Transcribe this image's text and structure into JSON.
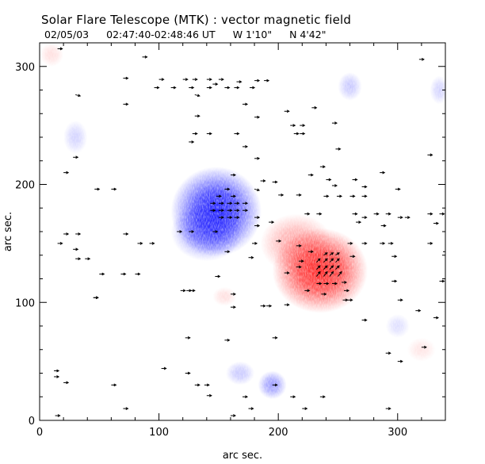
{
  "chart_data": {
    "type": "magnetogram",
    "title": "Solar Flare Telescope (MTK) : vector magnetic field",
    "date": "02/05/03",
    "time_range": "02:47:40-02:48:46 UT",
    "pos_w": "W 1'10\"",
    "pos_n": "N 4'42\"",
    "xlabel": "arc sec.",
    "ylabel": "arc sec.",
    "xlim": [
      0,
      340
    ],
    "ylim": [
      0,
      320
    ],
    "xticks": [
      0,
      100,
      200,
      300
    ],
    "yticks": [
      0,
      100,
      200,
      300
    ],
    "colors": {
      "positive": "#ff2020",
      "negative": "#1a1aff",
      "background": "#ffffff",
      "vector": "#000000"
    },
    "blobs": [
      {
        "polarity": "negative",
        "x": 148,
        "y": 177,
        "rx": 38,
        "ry": 38,
        "strength": 1.0
      },
      {
        "polarity": "negative",
        "x": 140,
        "y": 160,
        "rx": 30,
        "ry": 25,
        "strength": 0.5
      },
      {
        "polarity": "positive",
        "x": 235,
        "y": 127,
        "rx": 40,
        "ry": 36,
        "strength": 1.0
      },
      {
        "polarity": "positive",
        "x": 215,
        "y": 150,
        "rx": 30,
        "ry": 25,
        "strength": 0.4
      },
      {
        "polarity": "negative",
        "x": 195,
        "y": 30,
        "rx": 12,
        "ry": 12,
        "strength": 0.45
      },
      {
        "polarity": "negative",
        "x": 168,
        "y": 40,
        "rx": 12,
        "ry": 10,
        "strength": 0.25
      },
      {
        "polarity": "negative",
        "x": 260,
        "y": 283,
        "rx": 10,
        "ry": 12,
        "strength": 0.25
      },
      {
        "polarity": "negative",
        "x": 30,
        "y": 240,
        "rx": 10,
        "ry": 14,
        "strength": 0.2
      },
      {
        "polarity": "negative",
        "x": 335,
        "y": 280,
        "rx": 8,
        "ry": 12,
        "strength": 0.2
      },
      {
        "polarity": "negative",
        "x": 300,
        "y": 80,
        "rx": 10,
        "ry": 10,
        "strength": 0.15
      },
      {
        "polarity": "positive",
        "x": 155,
        "y": 105,
        "rx": 10,
        "ry": 8,
        "strength": 0.15
      },
      {
        "polarity": "positive",
        "x": 320,
        "y": 60,
        "rx": 12,
        "ry": 10,
        "strength": 0.12
      },
      {
        "polarity": "positive",
        "x": 10,
        "y": 310,
        "rx": 10,
        "ry": 10,
        "strength": 0.15
      }
    ],
    "vectors": [
      [
        100,
        289,
        4,
        0
      ],
      [
        120,
        289,
        4,
        0
      ],
      [
        128,
        289,
        4,
        0
      ],
      [
        140,
        289,
        4,
        0
      ],
      [
        150,
        289,
        4,
        0
      ],
      [
        165,
        287,
        4,
        0
      ],
      [
        180,
        288,
        4,
        0
      ],
      [
        188,
        288,
        4,
        0
      ],
      [
        96,
        282,
        4,
        0
      ],
      [
        110,
        282,
        4,
        0
      ],
      [
        125,
        282,
        4,
        0
      ],
      [
        140,
        282,
        4,
        0
      ],
      [
        155,
        282,
        4,
        0
      ],
      [
        163,
        282,
        4,
        0
      ],
      [
        176,
        282,
        4,
        0
      ],
      [
        145,
        285,
        4,
        0
      ],
      [
        130,
        276,
        4,
        -1
      ],
      [
        30,
        276,
        4,
        -1
      ],
      [
        170,
        268,
        4,
        0
      ],
      [
        70,
        268,
        4,
        0
      ],
      [
        205,
        262,
        4,
        0
      ],
      [
        130,
        258,
        4,
        0
      ],
      [
        180,
        257,
        4,
        0
      ],
      [
        210,
        250,
        4,
        0
      ],
      [
        218,
        250,
        4,
        0
      ],
      [
        213,
        243,
        4,
        0
      ],
      [
        218,
        243,
        4,
        0
      ],
      [
        140,
        243,
        4,
        0
      ],
      [
        128,
        243,
        4,
        0
      ],
      [
        163,
        243,
        4,
        0
      ],
      [
        125,
        236,
        4,
        0
      ],
      [
        170,
        232,
        4,
        0
      ],
      [
        248,
        230,
        4,
        0
      ],
      [
        235,
        215,
        4,
        0
      ],
      [
        28,
        223,
        4,
        0
      ],
      [
        180,
        222,
        4,
        0
      ],
      [
        225,
        208,
        4,
        0
      ],
      [
        20,
        210,
        4,
        0
      ],
      [
        185,
        203,
        4,
        0
      ],
      [
        160,
        208,
        4,
        0
      ],
      [
        240,
        204,
        4,
        0
      ],
      [
        262,
        204,
        4,
        0
      ],
      [
        285,
        210,
        4,
        0
      ],
      [
        298,
        196,
        4,
        0
      ],
      [
        46,
        196,
        4,
        0
      ],
      [
        60,
        196,
        4,
        0
      ],
      [
        245,
        199,
        4,
        0
      ],
      [
        270,
        198,
        4,
        0
      ],
      [
        195,
        202,
        4,
        0
      ],
      [
        180,
        196,
        4,
        -1
      ],
      [
        155,
        196,
        4,
        0
      ],
      [
        215,
        191,
        4,
        0
      ],
      [
        238,
        190,
        4,
        0
      ],
      [
        249,
        190,
        4,
        0
      ],
      [
        200,
        191,
        4,
        0
      ],
      [
        260,
        190,
        4,
        0
      ],
      [
        270,
        190,
        4,
        0
      ],
      [
        160,
        190,
        4,
        0
      ],
      [
        148,
        190,
        4,
        0
      ],
      [
        143,
        184,
        4,
        0
      ],
      [
        150,
        184,
        4,
        0
      ],
      [
        157,
        184,
        4,
        0
      ],
      [
        163,
        184,
        4,
        0
      ],
      [
        170,
        184,
        4,
        0
      ],
      [
        143,
        178,
        4,
        0
      ],
      [
        150,
        178,
        4,
        0
      ],
      [
        157,
        178,
        4,
        0
      ],
      [
        163,
        178,
        4,
        0
      ],
      [
        170,
        178,
        4,
        0
      ],
      [
        150,
        172,
        4,
        0
      ],
      [
        157,
        172,
        4,
        0
      ],
      [
        163,
        172,
        4,
        0
      ],
      [
        180,
        172,
        4,
        0
      ],
      [
        180,
        165,
        4,
        0
      ],
      [
        222,
        175,
        4,
        0
      ],
      [
        232,
        175,
        4,
        0
      ],
      [
        262,
        175,
        4,
        0
      ],
      [
        270,
        172,
        4,
        0
      ],
      [
        280,
        175,
        4,
        0
      ],
      [
        290,
        175,
        4,
        0
      ],
      [
        300,
        172,
        4,
        0
      ],
      [
        306,
        172,
        4,
        0
      ],
      [
        325,
        175,
        4,
        0
      ],
      [
        335,
        175,
        4,
        0
      ],
      [
        265,
        168,
        4,
        0
      ],
      [
        286,
        165,
        4,
        0
      ],
      [
        330,
        167,
        4,
        0
      ],
      [
        20,
        158,
        4,
        0
      ],
      [
        30,
        158,
        4,
        0
      ],
      [
        70,
        158,
        4,
        0
      ],
      [
        115,
        160,
        4,
        0
      ],
      [
        125,
        160,
        4,
        0
      ],
      [
        145,
        160,
        4,
        0
      ],
      [
        192,
        168,
        4,
        0
      ],
      [
        82,
        150,
        4,
        0
      ],
      [
        92,
        150,
        4,
        0
      ],
      [
        198,
        152,
        4,
        0
      ],
      [
        178,
        150,
        4,
        0
      ],
      [
        258,
        150,
        4,
        0
      ],
      [
        270,
        150,
        4,
        0
      ],
      [
        285,
        150,
        4,
        0
      ],
      [
        292,
        150,
        4,
        0
      ],
      [
        325,
        150,
        4,
        0
      ],
      [
        15,
        150,
        4,
        0
      ],
      [
        155,
        143,
        4,
        0
      ],
      [
        28,
        145,
        4,
        0
      ],
      [
        30,
        137,
        4,
        0
      ],
      [
        38,
        137,
        4,
        0
      ],
      [
        175,
        138,
        4,
        0
      ],
      [
        225,
        143,
        4,
        0
      ],
      [
        217,
        135,
        4,
        0
      ],
      [
        260,
        139,
        4,
        0
      ],
      [
        295,
        139,
        4,
        0
      ],
      [
        215,
        130,
        4,
        0
      ],
      [
        50,
        124,
        4,
        0
      ],
      [
        68,
        124,
        4,
        0
      ],
      [
        80,
        124,
        4,
        0
      ],
      [
        147,
        122,
        4,
        0
      ],
      [
        238,
        140,
        3,
        2
      ],
      [
        243,
        140,
        3,
        2
      ],
      [
        248,
        140,
        3,
        2
      ],
      [
        232,
        134,
        3,
        3
      ],
      [
        238,
        134,
        3,
        3
      ],
      [
        243,
        134,
        3,
        3
      ],
      [
        248,
        134,
        3,
        3
      ],
      [
        232,
        128,
        3,
        3
      ],
      [
        238,
        128,
        3,
        3
      ],
      [
        243,
        128,
        3,
        3
      ],
      [
        248,
        128,
        3,
        3
      ],
      [
        232,
        122,
        3,
        4
      ],
      [
        238,
        122,
        3,
        4
      ],
      [
        243,
        122,
        3,
        4
      ],
      [
        250,
        122,
        3,
        4
      ],
      [
        232,
        116,
        4,
        0
      ],
      [
        238,
        116,
        4,
        0
      ],
      [
        245,
        116,
        4,
        0
      ],
      [
        253,
        117,
        4,
        0
      ],
      [
        205,
        125,
        4,
        0
      ],
      [
        222,
        110,
        4,
        0
      ],
      [
        255,
        110,
        4,
        0
      ],
      [
        236,
        107,
        4,
        0
      ],
      [
        254,
        102,
        4,
        0
      ],
      [
        295,
        118,
        4,
        0
      ],
      [
        335,
        118,
        4,
        0
      ],
      [
        45,
        104,
        4,
        0
      ],
      [
        118,
        110,
        4,
        0
      ],
      [
        123,
        110,
        4,
        0
      ],
      [
        126,
        110,
        4,
        0
      ],
      [
        160,
        107,
        4,
        0
      ],
      [
        205,
        98,
        4,
        0
      ],
      [
        185,
        97,
        4,
        0
      ],
      [
        190,
        97,
        4,
        0
      ],
      [
        258,
        102,
        4,
        0
      ],
      [
        300,
        102,
        4,
        0
      ],
      [
        315,
        93,
        4,
        0
      ],
      [
        45,
        104,
        4,
        0
      ],
      [
        160,
        96,
        4,
        0
      ],
      [
        270,
        85,
        4,
        0
      ],
      [
        330,
        87,
        4,
        0
      ],
      [
        122,
        70,
        4,
        0
      ],
      [
        195,
        70,
        4,
        0
      ],
      [
        155,
        68,
        4,
        0
      ],
      [
        320,
        62,
        4,
        0
      ],
      [
        290,
        57,
        4,
        0
      ],
      [
        12,
        42,
        4,
        0
      ],
      [
        122,
        40,
        4,
        0
      ],
      [
        102,
        44,
        4,
        0
      ],
      [
        12,
        37,
        4,
        0
      ],
      [
        20,
        32,
        4,
        0
      ],
      [
        60,
        30,
        4,
        0
      ],
      [
        130,
        30,
        4,
        0
      ],
      [
        138,
        30,
        4,
        0
      ],
      [
        195,
        30,
        4,
        0
      ],
      [
        140,
        21,
        4,
        0
      ],
      [
        170,
        20,
        4,
        0
      ],
      [
        210,
        20,
        4,
        0
      ],
      [
        235,
        20,
        4,
        0
      ],
      [
        70,
        10,
        4,
        0
      ],
      [
        175,
        10,
        4,
        0
      ],
      [
        220,
        10,
        4,
        0
      ],
      [
        290,
        10,
        4,
        0
      ],
      [
        13,
        4,
        4,
        0
      ],
      [
        160,
        4,
        4,
        0
      ],
      [
        318,
        306,
        4,
        0
      ],
      [
        228,
        265,
        4,
        0
      ],
      [
        245,
        252,
        4,
        0
      ],
      [
        325,
        225,
        4,
        0
      ],
      [
        70,
        290,
        4,
        0
      ],
      [
        86,
        308,
        4,
        0
      ],
      [
        15,
        315,
        4,
        0
      ],
      [
        338,
        143,
        4,
        0
      ],
      [
        300,
        50,
        4,
        0
      ],
      [
        215,
        148,
        4,
        0
      ]
    ]
  }
}
